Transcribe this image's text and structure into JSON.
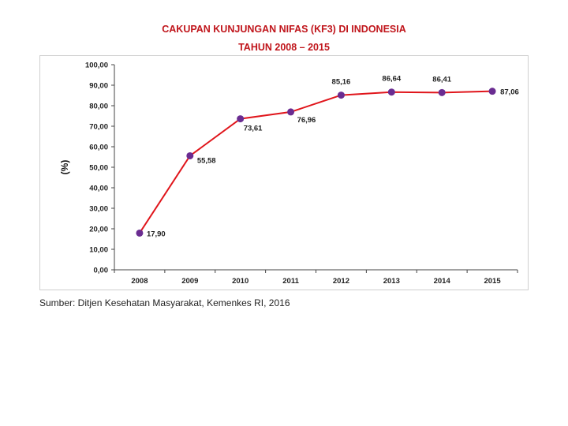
{
  "chart_data": {
    "type": "line",
    "title": "CAKUPAN KUNJUNGAN NIFAS (KF3) DI INDONESIA",
    "subtitle": "TAHUN 2008 – 2015",
    "xlabel": "",
    "ylabel": "(%)",
    "categories": [
      "2008",
      "2009",
      "2010",
      "2011",
      "2012",
      "2013",
      "2014",
      "2015"
    ],
    "values": [
      17.9,
      55.58,
      73.61,
      76.96,
      85.16,
      86.64,
      86.41,
      87.06
    ],
    "data_labels": [
      "17,90",
      "55,58",
      "73,61",
      "76,96",
      "85,16",
      "86,64",
      "86,41",
      "87,06"
    ],
    "ylim": [
      0,
      100
    ],
    "yticks": [
      "0,00",
      "10,00",
      "20,00",
      "30,00",
      "40,00",
      "50,00",
      "60,00",
      "70,00",
      "80,00",
      "90,00",
      "100,00"
    ],
    "grid": false,
    "colors": {
      "line": "#e0151b",
      "marker": "#6a2c91",
      "title": "#c0151b"
    }
  },
  "source": "Sumber: Ditjen Kesehatan Masyarakat, Kemenkes RI, 2016"
}
